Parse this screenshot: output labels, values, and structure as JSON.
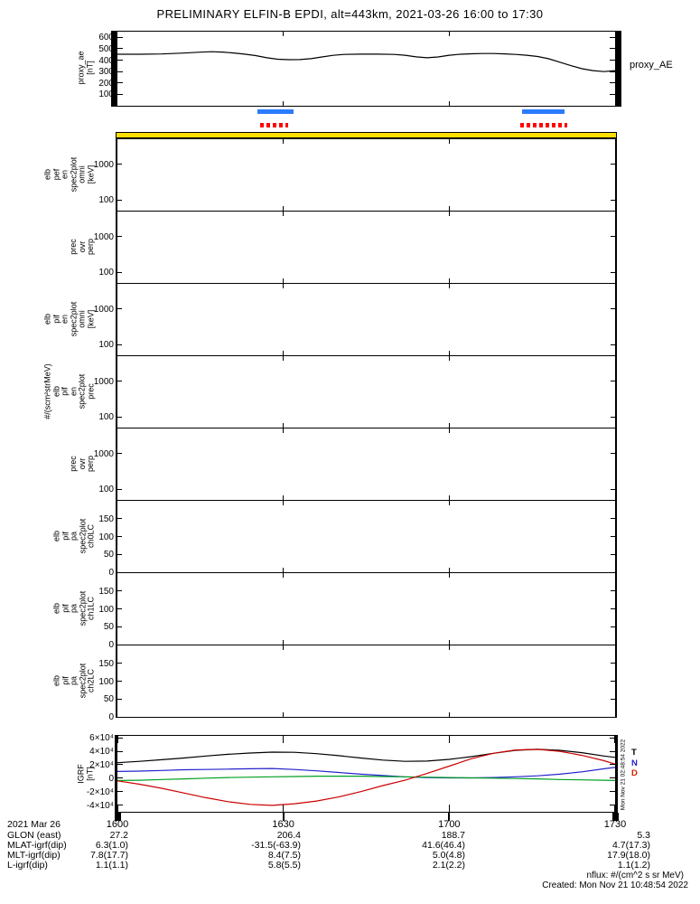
{
  "title": "PRELIMINARY ELFIN-B EPDI, alt=443km, 2021-03-26 16:00 to 17:30",
  "time_axis": {
    "span_minutes": 90,
    "ticks": [
      {
        "label": "1600",
        "minutes": 0
      },
      {
        "label": "1630",
        "minutes": 30
      },
      {
        "label": "1700",
        "minutes": 60
      },
      {
        "label": "1730",
        "minutes": 90
      }
    ]
  },
  "chart_data": [
    {
      "id": "proxy_ae",
      "type": "line",
      "title": "proxy_AE",
      "ylabel_lines": [
        "proxy_ae",
        "[nT]"
      ],
      "ylim": [
        0,
        650
      ],
      "yticks": [
        600,
        500,
        400,
        300,
        200,
        100
      ],
      "x_unit": "minutes after 16:00 UT",
      "x_minutes": [
        0,
        4,
        8,
        12,
        15,
        17,
        19,
        21,
        23,
        25,
        27,
        29,
        31,
        33,
        35,
        37,
        39,
        41,
        44,
        47,
        50,
        52,
        54,
        56,
        58,
        60,
        62,
        64,
        66,
        68,
        70,
        72,
        74,
        76,
        78,
        80,
        82,
        84,
        86,
        88,
        90
      ],
      "series": [
        {
          "name": "proxy_AE",
          "color": "#000000",
          "values": [
            452,
            452,
            454,
            462,
            470,
            474,
            471,
            463,
            453,
            440,
            421,
            408,
            404,
            405,
            413,
            428,
            442,
            450,
            453,
            453,
            450,
            443,
            429,
            421,
            428,
            443,
            452,
            456,
            458,
            458,
            455,
            450,
            443,
            432,
            412,
            382,
            352,
            325,
            308,
            300,
            308
          ]
        }
      ]
    },
    {
      "id": "epd_coverage",
      "type": "intervals",
      "rows": [
        {
          "name": "science-zone-blue",
          "color": "#2b7bff",
          "style": "solid",
          "intervals_minutes": [
            [
              25.3,
              31.8
            ],
            [
              73.2,
              80.8
            ]
          ]
        },
        {
          "name": "science-zone-red",
          "color": "#ff0000",
          "style": "dashed",
          "intervals_minutes": [
            [
              25.8,
              30.8
            ],
            [
              72.8,
              81.3
            ]
          ]
        }
      ]
    },
    {
      "id": "quality_flag",
      "type": "interval",
      "color": "#ffdf00",
      "intervals_minutes": [
        [
          0,
          90
        ]
      ]
    },
    {
      "id": "spec_p1",
      "type": "spectrogram",
      "yscale": "log",
      "ylim": [
        50,
        5000
      ],
      "yticks": [
        1000,
        100
      ],
      "label_lines": [
        "elb",
        "pef",
        "en",
        "spec2plot",
        "omni",
        "[keV]"
      ],
      "data_note": "no data plotted"
    },
    {
      "id": "spec_p2",
      "type": "spectrogram",
      "yscale": "log",
      "ylim": [
        50,
        5000
      ],
      "yticks": [
        1000,
        100
      ],
      "label_lines": [
        "prec",
        "ovr",
        "perp"
      ],
      "data_note": "no data plotted"
    },
    {
      "id": "spec_p3",
      "type": "spectrogram",
      "yscale": "log",
      "ylim": [
        50,
        5000
      ],
      "yticks": [
        1000,
        100
      ],
      "label_lines": [
        "elb",
        "pif",
        "en",
        "spec2plot",
        "omni",
        "[keV]"
      ],
      "data_note": "no data plotted"
    },
    {
      "id": "spec_p4",
      "type": "spectrogram",
      "yscale": "log",
      "ylim": [
        50,
        5000
      ],
      "yticks": [
        1000,
        100
      ],
      "label_lines": [
        "#/(scm²strMeV)",
        "elb",
        "pif",
        "en",
        "spec2plot",
        "prec"
      ],
      "data_note": "no data plotted"
    },
    {
      "id": "spec_p5",
      "type": "spectrogram",
      "yscale": "log",
      "ylim": [
        50,
        5000
      ],
      "yticks": [
        1000,
        100
      ],
      "label_lines": [
        "prec",
        "ovr",
        "perp"
      ],
      "data_note": "no data plotted"
    },
    {
      "id": "spec_p6",
      "type": "spectrogram",
      "yscale": "linear",
      "ylim": [
        0,
        200
      ],
      "yticks": [
        150,
        100,
        50,
        0
      ],
      "label_lines": [
        "elb",
        "pif",
        "pa",
        "spec2plot",
        "ch0LC"
      ],
      "data_note": "no data plotted"
    },
    {
      "id": "spec_p7",
      "type": "spectrogram",
      "yscale": "linear",
      "ylim": [
        0,
        200
      ],
      "yticks": [
        150,
        100,
        50,
        0
      ],
      "label_lines": [
        "elb",
        "pif",
        "pa",
        "spec2plot",
        "ch1LC"
      ],
      "data_note": "no data plotted"
    },
    {
      "id": "spec_p8",
      "type": "spectrogram",
      "yscale": "linear",
      "ylim": [
        0,
        200
      ],
      "yticks": [
        150,
        100,
        50,
        0
      ],
      "label_lines": [
        "elb",
        "pif",
        "pa",
        "spec2plot",
        "ch2LC"
      ],
      "data_note": "no data plotted"
    },
    {
      "id": "igrf",
      "type": "line",
      "ylabel_lines": [
        "IGRF",
        "[nT]"
      ],
      "ylim": [
        -50000,
        63000
      ],
      "yticks": [
        {
          "v": 60000,
          "label": "6×10⁴"
        },
        {
          "v": 40000,
          "label": "4×10⁴"
        },
        {
          "v": 20000,
          "label": "2×10⁴"
        },
        {
          "v": 0,
          "label": "0"
        },
        {
          "v": -20000,
          "label": "-2×10⁴"
        },
        {
          "v": -40000,
          "label": "-4×10⁴"
        }
      ],
      "x_minutes": [
        0,
        4,
        8,
        12,
        16,
        20,
        24,
        28,
        32,
        36,
        40,
        44,
        48,
        52,
        56,
        60,
        64,
        68,
        72,
        76,
        80,
        84,
        88,
        90
      ],
      "series": [
        {
          "name": "T",
          "color": "#000000",
          "values": [
            23000,
            25000,
            27500,
            30000,
            33000,
            35500,
            37500,
            38800,
            38500,
            36500,
            33500,
            30000,
            27000,
            25000,
            25500,
            28000,
            32000,
            37000,
            41500,
            43000,
            41500,
            38000,
            33000,
            31000
          ]
        },
        {
          "name": "N",
          "color": "#2222cc",
          "values": [
            10000,
            10500,
            11500,
            12500,
            13000,
            13500,
            14000,
            14500,
            13000,
            11000,
            8500,
            6000,
            4000,
            2000,
            1000,
            500,
            500,
            1000,
            2000,
            3500,
            6000,
            9500,
            14000,
            16000
          ]
        },
        {
          "name": "E",
          "color": "#00a020",
          "values": [
            -3500,
            -3000,
            -2000,
            -1000,
            0,
            1000,
            1500,
            2000,
            2500,
            3000,
            3000,
            3000,
            2500,
            2000,
            1500,
            1000,
            500,
            0,
            -500,
            -1000,
            -2000,
            -2500,
            -3000,
            -3500
          ]
        },
        {
          "name": "D",
          "color": "#cc0000",
          "values": [
            -4000,
            -9000,
            -15000,
            -22000,
            -29000,
            -35000,
            -39000,
            -40500,
            -38000,
            -34000,
            -28000,
            -20000,
            -11000,
            -3000,
            7000,
            18000,
            29000,
            37000,
            42000,
            43000,
            40000,
            34000,
            26000,
            21000
          ]
        }
      ],
      "legend": [
        {
          "label": "T",
          "color": "#000000"
        },
        {
          "label": "N",
          "color": "#2222cc"
        },
        {
          "label": "D",
          "color": "#cc2200"
        }
      ]
    },
    {
      "id": "ephemeris",
      "type": "table",
      "date_label": "2021 Mar 26",
      "columns": [
        "1600",
        "1630",
        "1700",
        "1730"
      ],
      "rows": [
        {
          "label": "GLON (east)",
          "values": [
            "27.2",
            "206.4",
            "188.7",
            "5.3"
          ]
        },
        {
          "label": "MLAT-igrf(dip)",
          "values": [
            "6.3(1.0)",
            "-31.5(-63.9)",
            "41.6(46.4)",
            "4.7(17.3)"
          ]
        },
        {
          "label": "MLT-igrf(dip)",
          "values": [
            "7.8(17.7)",
            "8.4(7.5)",
            "5.0(4.8)",
            "17.9(18.0)"
          ]
        },
        {
          "label": "L-igrf(dip)",
          "values": [
            "1.1(1.1)",
            "5.8(5.5)",
            "2.1(2.2)",
            "1.1(1.2)"
          ]
        }
      ]
    }
  ],
  "footer": {
    "nflux": "nflux: #/(cm^2 s sr MeV)",
    "created": "Created: Mon Nov 21 10:48:54 2022",
    "side_timestamp": "Mon Nov 21 02:48:54 2022"
  }
}
